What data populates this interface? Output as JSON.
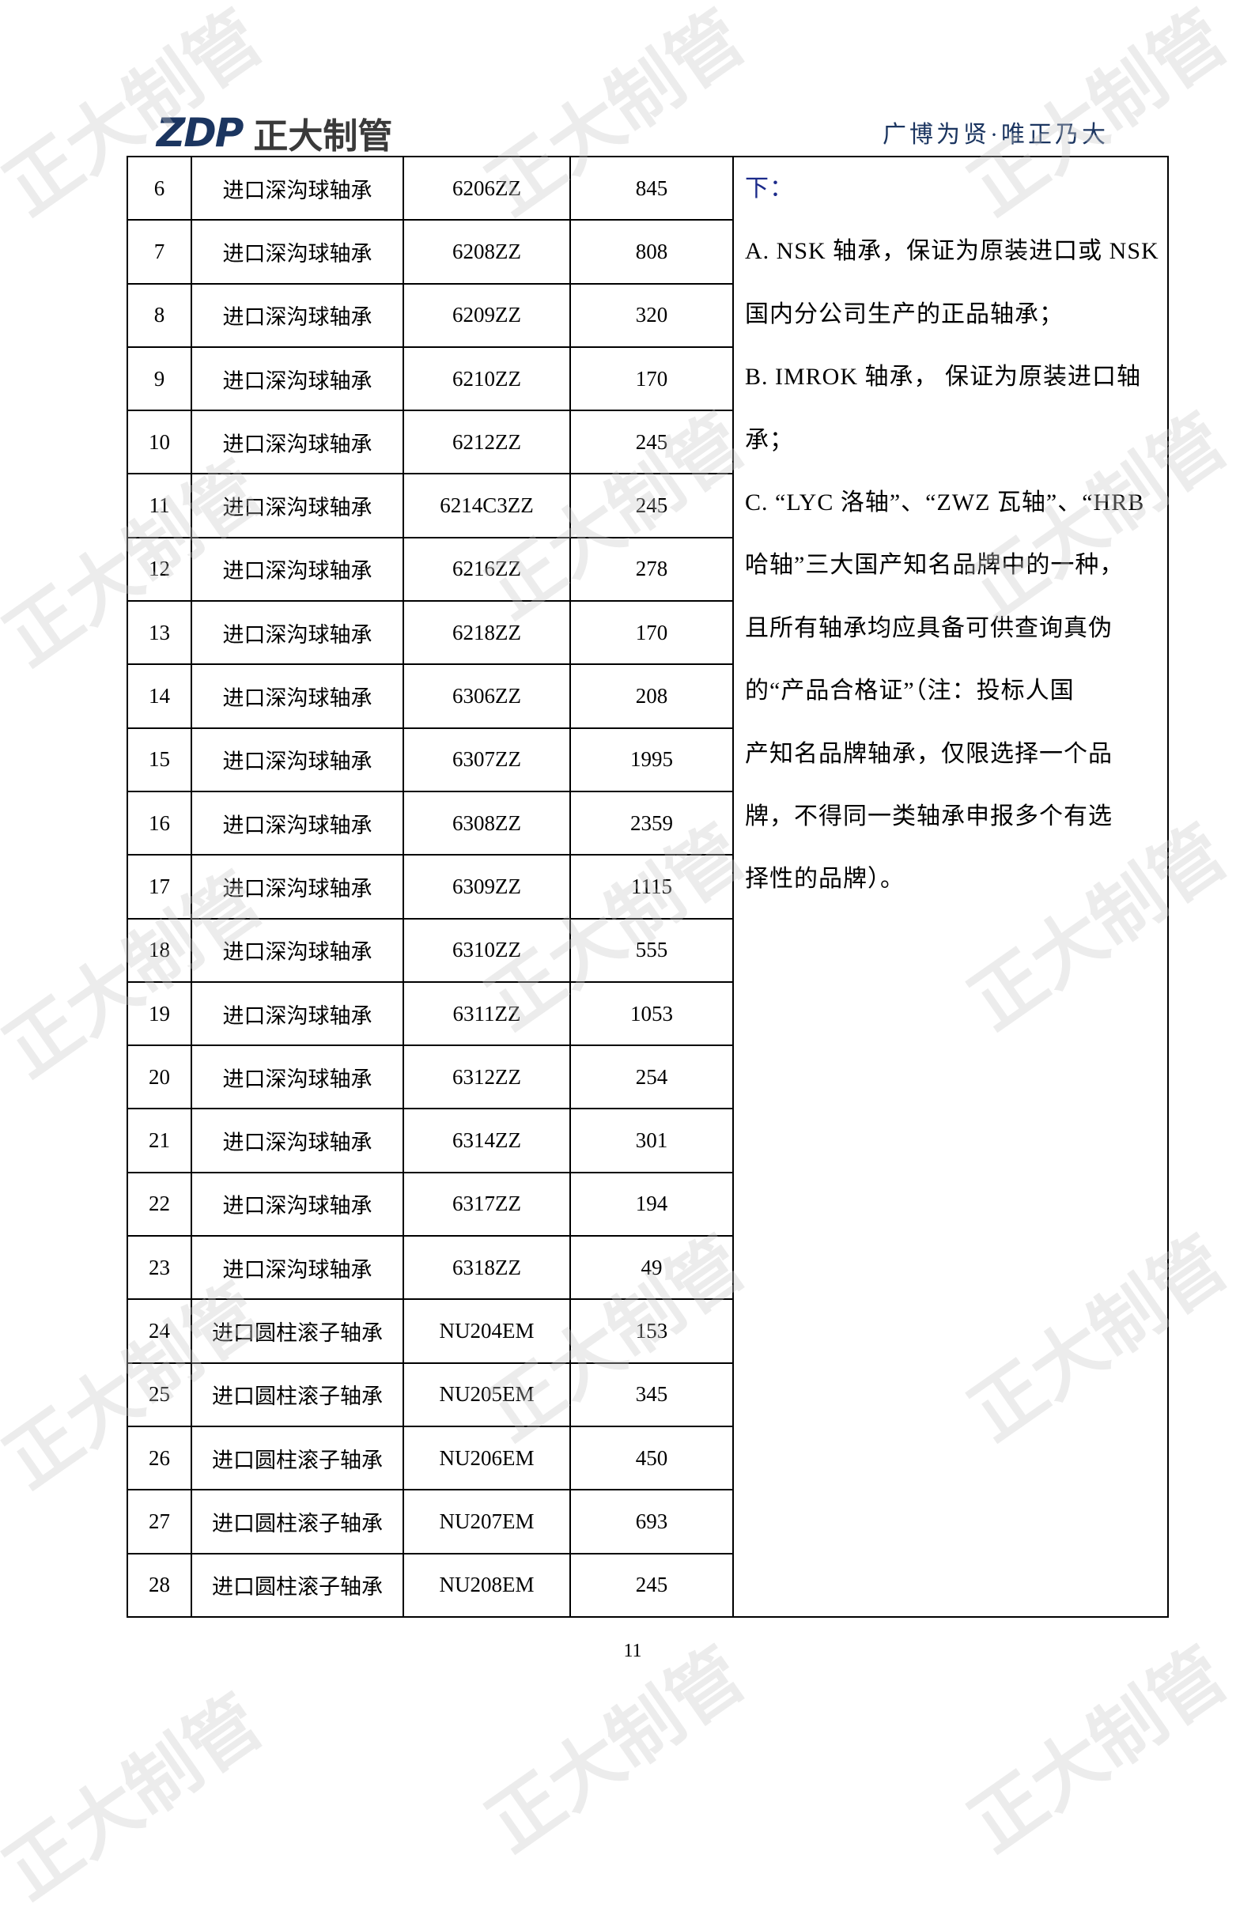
{
  "header": {
    "logo_text": "ZDP 正大制管",
    "logo_mark": "ZDP",
    "logo_cn": "正大制管",
    "slogan": "广博为贤·唯正乃大"
  },
  "watermark": "正大制管",
  "table": {
    "rows": [
      [
        "6",
        "进口深沟球轴承",
        "6206ZZ",
        "845"
      ],
      [
        "7",
        "进口深沟球轴承",
        "6208ZZ",
        "808"
      ],
      [
        "8",
        "进口深沟球轴承",
        "6209ZZ",
        "320"
      ],
      [
        "9",
        "进口深沟球轴承",
        "6210ZZ",
        "170"
      ],
      [
        "10",
        "进口深沟球轴承",
        "6212ZZ",
        "245"
      ],
      [
        "11",
        "进口深沟球轴承",
        "6214C3ZZ",
        "245"
      ],
      [
        "12",
        "进口深沟球轴承",
        "6216ZZ",
        "278"
      ],
      [
        "13",
        "进口深沟球轴承",
        "6218ZZ",
        "170"
      ],
      [
        "14",
        "进口深沟球轴承",
        "6306ZZ",
        "208"
      ],
      [
        "15",
        "进口深沟球轴承",
        "6307ZZ",
        "1995"
      ],
      [
        "16",
        "进口深沟球轴承",
        "6308ZZ",
        "2359"
      ],
      [
        "17",
        "进口深沟球轴承",
        "6309ZZ",
        "1115"
      ],
      [
        "18",
        "进口深沟球轴承",
        "6310ZZ",
        "555"
      ],
      [
        "19",
        "进口深沟球轴承",
        "6311ZZ",
        "1053"
      ],
      [
        "20",
        "进口深沟球轴承",
        "6312ZZ",
        "254"
      ],
      [
        "21",
        "进口深沟球轴承",
        "6314ZZ",
        "301"
      ],
      [
        "22",
        "进口深沟球轴承",
        "6317ZZ",
        "194"
      ],
      [
        "23",
        "进口深沟球轴承",
        "6318ZZ",
        "49"
      ],
      [
        "24",
        "进口圆柱滚子轴承",
        "NU204EM",
        "153"
      ],
      [
        "25",
        "进口圆柱滚子轴承",
        "NU205EM",
        "345"
      ],
      [
        "26",
        "进口圆柱滚子轴承",
        "NU206EM",
        "450"
      ],
      [
        "27",
        "进口圆柱滚子轴承",
        "NU207EM",
        "693"
      ],
      [
        "28",
        "进口圆柱滚子轴承",
        "NU208EM",
        "245"
      ]
    ],
    "note_lines": [
      "下：",
      "A. NSK 轴承，保证为原装进口或 NSK",
      "国内分公司生产的正品轴承；",
      "B. IMROK 轴承， 保证为原装进口轴",
      "承；",
      "C. “LYC 洛轴”、“ZWZ 瓦轴”、“HRB",
      "哈轴”三大国产知名品牌中的一种，",
      "且所有轴承均应具备可供查询真伪",
      "的“产品合格证”（注：投标人国",
      "产知名品牌轴承，仅限选择一个品",
      "牌，不得同一类轴承申报多个有选",
      "择性的品牌）。"
    ]
  },
  "footer": {
    "page_number": "11"
  }
}
